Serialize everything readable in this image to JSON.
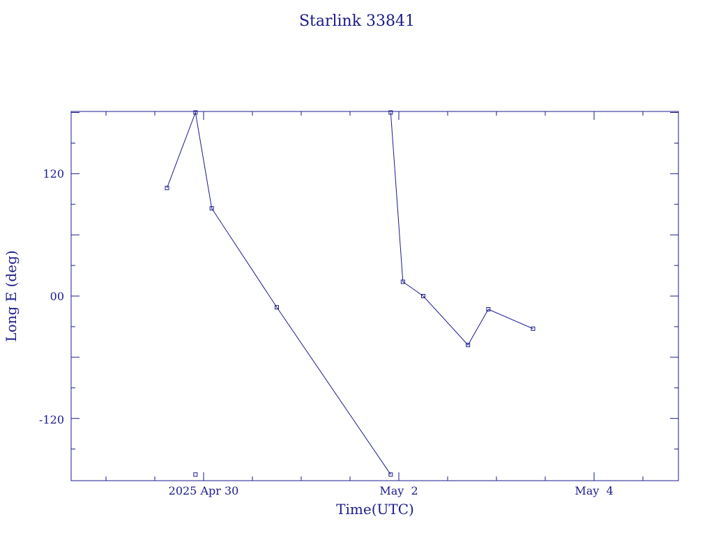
{
  "chart_data": {
    "type": "line",
    "title": "Starlink 33841",
    "xlabel": "Time(UTC)",
    "ylabel": "Long E (deg)",
    "x_tick_labels": [
      "2025 Apr 30",
      "May  2",
      "May  4"
    ],
    "y_tick_labels": [
      "120",
      "00",
      "-120"
    ],
    "grid": false,
    "legend": "none",
    "ylim": [
      -180,
      180
    ],
    "xlim": [
      "2025-04-28T20:00",
      "2025-05-05T06:00"
    ],
    "series": [
      {
        "points": [
          {
            "t": "2025-04-29T15:00",
            "lon": 106
          },
          {
            "t": "2025-04-29T22:00",
            "lon": 180
          },
          {
            "t": "2025-04-30T02:00",
            "lon": 86
          },
          {
            "t": "2025-04-30T18:00",
            "lon": -11
          },
          {
            "t": "2025-05-01T22:00",
            "lon": -175
          }
        ]
      },
      {
        "points": [
          {
            "t": "2025-05-01T22:00",
            "lon": 180
          },
          {
            "t": "2025-05-02T01:00",
            "lon": 14
          },
          {
            "t": "2025-05-02T06:00",
            "lon": 0
          },
          {
            "t": "2025-05-02T17:00",
            "lon": -48
          },
          {
            "t": "2025-05-02T22:00",
            "lon": -13
          },
          {
            "t": "2025-05-03T09:00",
            "lon": -32
          }
        ]
      }
    ],
    "extra_markers": [
      {
        "t": "2025-04-29T22:00",
        "lon": -175
      }
    ]
  },
  "colors": {
    "line": "#1a1a8c",
    "axes": "#1a1a8c",
    "background": "#ffffff"
  }
}
